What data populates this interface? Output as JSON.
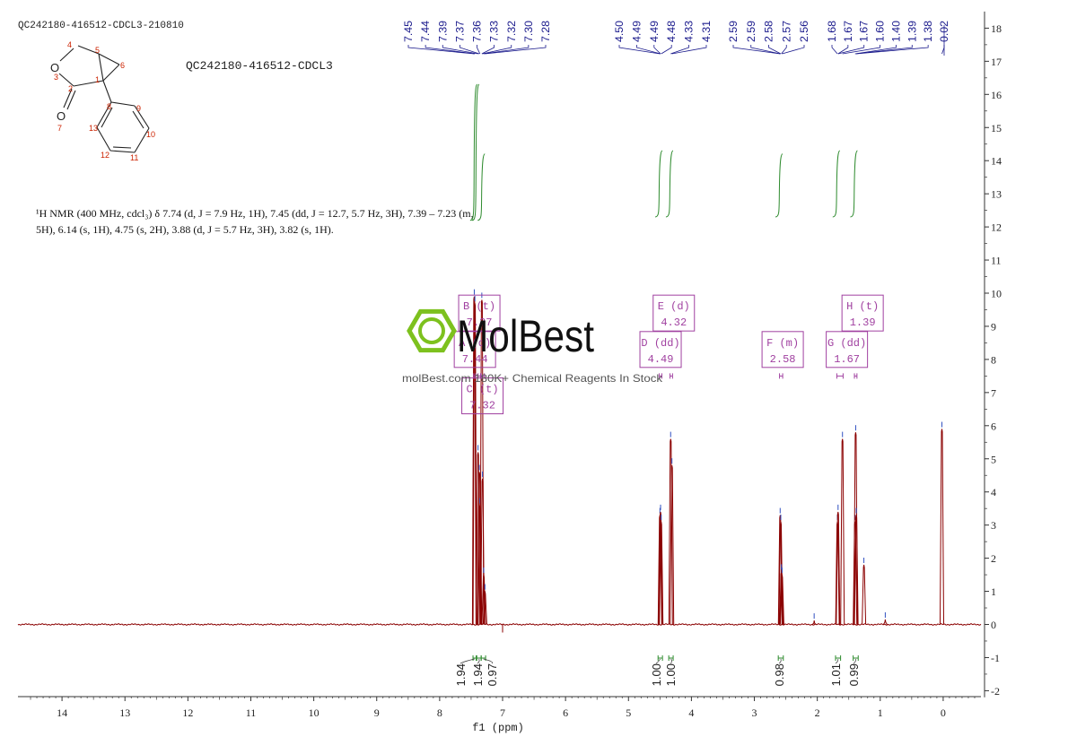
{
  "header": {
    "file_id": "QC242180-416512-CDCL3-210810",
    "title": "QC242180-416512-CDCL3"
  },
  "nmr_description": {
    "line1": "¹H NMR (400 MHz, cdcl₃) δ 7.74 (d, J = 7.9 Hz, 1H), 7.45 (dd, J = 12.7, 5.7 Hz, 3H), 7.39 – 7.23 (m,",
    "line2": "5H), 6.14 (s, 1H), 4.75 (s, 2H), 3.88 (d, J = 5.7 Hz, 3H), 3.82 (s, 1H)."
  },
  "watermark": {
    "brand": "MolBest",
    "tagline": "molBest.com 180K+ Chemical Reagents In Stock"
  },
  "structure": {
    "atom_labels": [
      "1",
      "2",
      "3",
      "4",
      "5",
      "6",
      "7",
      "8",
      "9",
      "10",
      "11",
      "12",
      "13"
    ],
    "element_labels": [
      "O",
      "O"
    ]
  },
  "colors": {
    "spectrum": "#8b0000",
    "integral": "#2e8b2e",
    "multiplet_box": "#a040a0",
    "peak_label": "#1a1a8c",
    "atom_number": "#cc2200"
  },
  "chart_data": {
    "type": "line",
    "xlabel": "f1 (ppm)",
    "xlim": [
      14.7,
      -0.6
    ],
    "xticks": [
      14,
      13,
      12,
      11,
      10,
      9,
      8,
      7,
      6,
      5,
      4,
      3,
      2,
      1,
      0
    ],
    "ylim_right": [
      -2,
      18
    ],
    "yticks_right": [
      -2,
      -1,
      0,
      1,
      2,
      3,
      4,
      5,
      6,
      7,
      8,
      9,
      10,
      11,
      12,
      13,
      14,
      15,
      16,
      17,
      18
    ],
    "peaks": [
      {
        "ppm": 7.45,
        "height": 9.9
      },
      {
        "ppm": 7.44,
        "height": 9.7
      },
      {
        "ppm": 7.39,
        "height": 5.2
      },
      {
        "ppm": 7.37,
        "height": 4.6
      },
      {
        "ppm": 7.36,
        "height": 3.6
      },
      {
        "ppm": 7.33,
        "height": 9.8
      },
      {
        "ppm": 7.32,
        "height": 4.4
      },
      {
        "ppm": 7.3,
        "height": 1.5
      },
      {
        "ppm": 7.28,
        "height": 1.0
      },
      {
        "ppm": 4.5,
        "height": 3.3
      },
      {
        "ppm": 4.49,
        "height": 3.4
      },
      {
        "ppm": 4.48,
        "height": 3.1
      },
      {
        "ppm": 4.33,
        "height": 5.6
      },
      {
        "ppm": 4.31,
        "height": 4.8
      },
      {
        "ppm": 2.59,
        "height": 3.3
      },
      {
        "ppm": 2.58,
        "height": 3.1
      },
      {
        "ppm": 2.57,
        "height": 1.6
      },
      {
        "ppm": 2.56,
        "height": 1.5
      },
      {
        "ppm": 1.68,
        "height": 3.1
      },
      {
        "ppm": 1.67,
        "height": 3.4
      },
      {
        "ppm": 1.6,
        "height": 5.6
      },
      {
        "ppm": 1.4,
        "height": 3.1
      },
      {
        "ppm": 1.39,
        "height": 5.8
      },
      {
        "ppm": 1.38,
        "height": 3.3
      },
      {
        "ppm": 1.26,
        "height": 1.8
      },
      {
        "ppm": 0.92,
        "height": 0.15
      },
      {
        "ppm": 2.05,
        "height": 0.12
      },
      {
        "ppm": 0.02,
        "height": 5.9
      }
    ],
    "peak_labels": [
      "7.45",
      "7.44",
      "7.39",
      "7.37",
      "7.36",
      "7.33",
      "7.32",
      "7.30",
      "7.28",
      "4.50",
      "4.49",
      "4.49",
      "4.48",
      "4.33",
      "4.31",
      "2.59",
      "2.59",
      "2.58",
      "2.57",
      "2.56",
      "1.68",
      "1.67",
      "1.67",
      "1.60",
      "1.40",
      "1.39",
      "1.38",
      "0.02"
    ],
    "peak_groups": [
      {
        "from": 7.45,
        "to": 7.28,
        "labels": [
          0,
          8
        ]
      },
      {
        "from": 4.5,
        "to": 4.31,
        "labels": [
          9,
          14
        ]
      },
      {
        "from": 2.59,
        "to": 2.56,
        "labels": [
          15,
          19
        ]
      },
      {
        "from": 1.68,
        "to": 0.02,
        "labels": [
          20,
          27
        ]
      }
    ],
    "integrals": [
      {
        "from": 7.47,
        "to": 7.42,
        "value": "1.94"
      },
      {
        "from": 7.41,
        "to": 7.34,
        "value": "1.94"
      },
      {
        "from": 7.34,
        "to": 7.27,
        "value": "0.97"
      },
      {
        "from": 4.53,
        "to": 4.46,
        "value": "1.00"
      },
      {
        "from": 4.36,
        "to": 4.29,
        "value": "1.00"
      },
      {
        "from": 2.62,
        "to": 2.54,
        "value": "0.98"
      },
      {
        "from": 1.71,
        "to": 1.63,
        "value": "1.01"
      },
      {
        "from": 1.43,
        "to": 1.35,
        "value": "0.99"
      }
    ],
    "integral_curves": [
      {
        "ppm": 7.43,
        "bottom": 12.2,
        "top": 16.3
      },
      {
        "ppm": 7.4,
        "bottom": 12.2,
        "top": 16.3
      },
      {
        "ppm": 7.31,
        "bottom": 12.2,
        "top": 14.2
      },
      {
        "ppm": 4.49,
        "bottom": 12.3,
        "top": 14.3
      },
      {
        "ppm": 4.32,
        "bottom": 12.3,
        "top": 14.3
      },
      {
        "ppm": 2.58,
        "bottom": 12.3,
        "top": 14.2
      },
      {
        "ppm": 1.67,
        "bottom": 12.3,
        "top": 14.3
      },
      {
        "ppm": 1.39,
        "bottom": 12.3,
        "top": 14.3
      }
    ],
    "multiplets": [
      {
        "letter": "B",
        "mult": "(t)",
        "value": "7.37",
        "box_ppm": 7.37,
        "box_y": 9.4,
        "range": [
          7.39,
          7.35
        ]
      },
      {
        "letter": "A",
        "mult": "(d)",
        "value": "7.44",
        "box_ppm": 7.44,
        "box_y": 8.3,
        "range": [
          7.46,
          7.43
        ]
      },
      {
        "letter": "C",
        "mult": "(t)",
        "value": "7.32",
        "box_ppm": 7.32,
        "box_y": 6.9,
        "range": [
          7.34,
          7.29
        ]
      },
      {
        "letter": "E",
        "mult": "(d)",
        "value": "4.32",
        "box_ppm": 4.28,
        "box_y": 9.4,
        "range": [
          4.34,
          4.3
        ]
      },
      {
        "letter": "D",
        "mult": "(dd)",
        "value": "4.49",
        "box_ppm": 4.49,
        "box_y": 8.3,
        "range": [
          4.51,
          4.47
        ]
      },
      {
        "letter": "F",
        "mult": "(m)",
        "value": "2.58",
        "box_ppm": 2.55,
        "box_y": 8.3,
        "range": [
          2.6,
          2.55
        ]
      },
      {
        "letter": "G",
        "mult": "(dd)",
        "value": "1.67",
        "box_ppm": 1.53,
        "box_y": 8.3,
        "range": [
          1.69,
          1.59
        ]
      },
      {
        "letter": "H",
        "mult": "(t)",
        "value": "1.39",
        "box_ppm": 1.28,
        "box_y": 9.4,
        "range": [
          1.41,
          1.37
        ]
      }
    ]
  }
}
